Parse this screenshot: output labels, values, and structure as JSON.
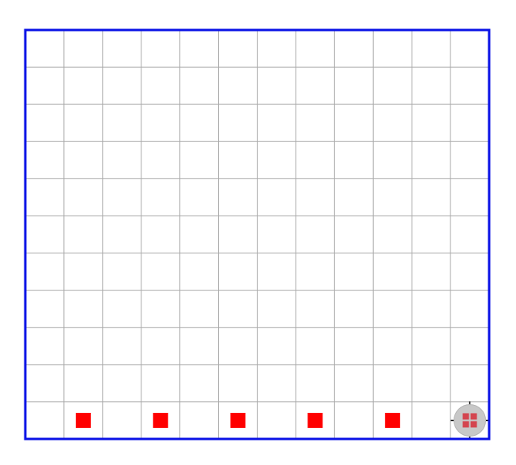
{
  "board": {
    "columns": 12,
    "rows": 11,
    "colors": {
      "border": "#0a12e6",
      "grid_line": "#aaaaaa",
      "background": "#ffffff",
      "marker": "#ff0000",
      "robot_body": "#c8c8c8",
      "robot_window": "#d4454f",
      "robot_axis": "#000000"
    }
  },
  "markers": [
    {
      "col": 1,
      "row": 10
    },
    {
      "col": 3,
      "row": 10
    },
    {
      "col": 5,
      "row": 10
    },
    {
      "col": 7,
      "row": 10
    },
    {
      "col": 9,
      "row": 10
    }
  ],
  "robot": {
    "icon": "robot-icon",
    "col": 11,
    "row": 10
  }
}
